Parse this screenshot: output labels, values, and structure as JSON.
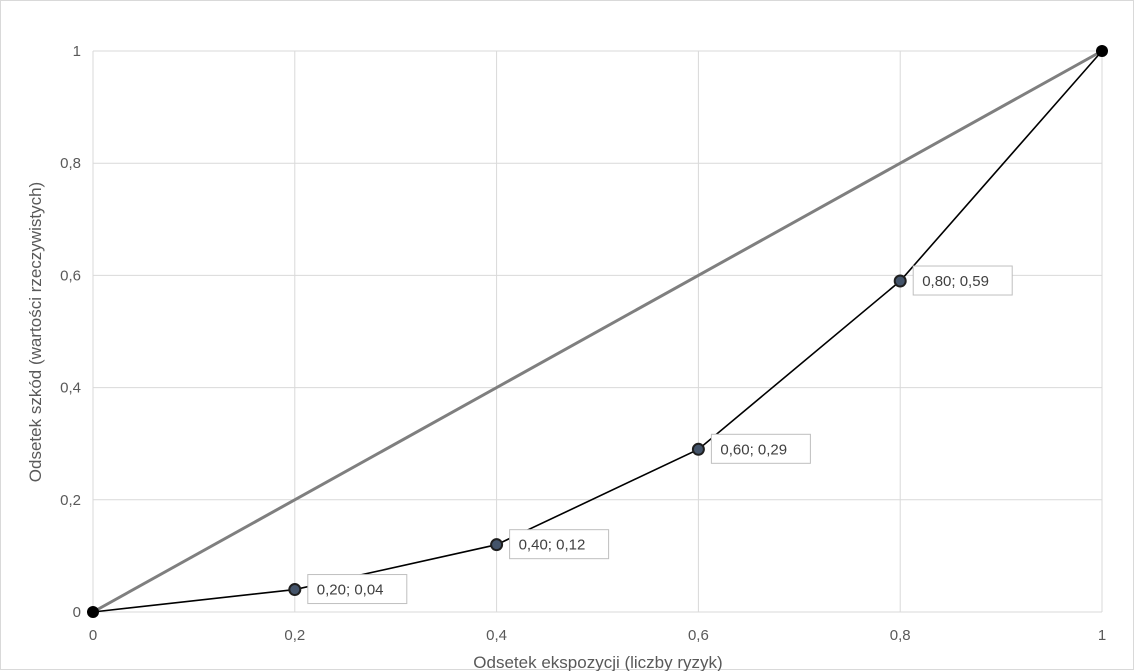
{
  "chart_data": {
    "type": "scatter",
    "title": "",
    "xlabel": "Odsetek ekspozycji (liczby ryzyk)",
    "ylabel": "Odsetek szkód (wartości rzeczywistych)",
    "xlim": [
      0,
      1
    ],
    "ylim": [
      0,
      1
    ],
    "grid": true,
    "legend": "none",
    "x_ticks": [
      0,
      0.2,
      0.4,
      0.6,
      0.8,
      1
    ],
    "y_ticks": [
      0,
      0.2,
      0.4,
      0.6,
      0.8,
      1
    ],
    "x_tick_labels": [
      "0",
      "0,2",
      "0,4",
      "0,6",
      "0,8",
      "1"
    ],
    "y_tick_labels": [
      "0",
      "0,2",
      "0,4",
      "0,6",
      "0,8",
      "1"
    ],
    "series": [
      {
        "color": "#7f7f7f",
        "x": [
          0,
          1
        ],
        "y": [
          0,
          1
        ]
      },
      {
        "color": "#000000",
        "marker_color": "#44546a",
        "x": [
          0,
          0.2,
          0.4,
          0.6,
          0.8,
          1
        ],
        "y": [
          0,
          0.04,
          0.12,
          0.29,
          0.59,
          1
        ],
        "data_labels": [
          "",
          "0,20; 0,04",
          "0,40; 0,12",
          "0,60; 0,29",
          "0,80; 0,59",
          ""
        ]
      }
    ]
  }
}
